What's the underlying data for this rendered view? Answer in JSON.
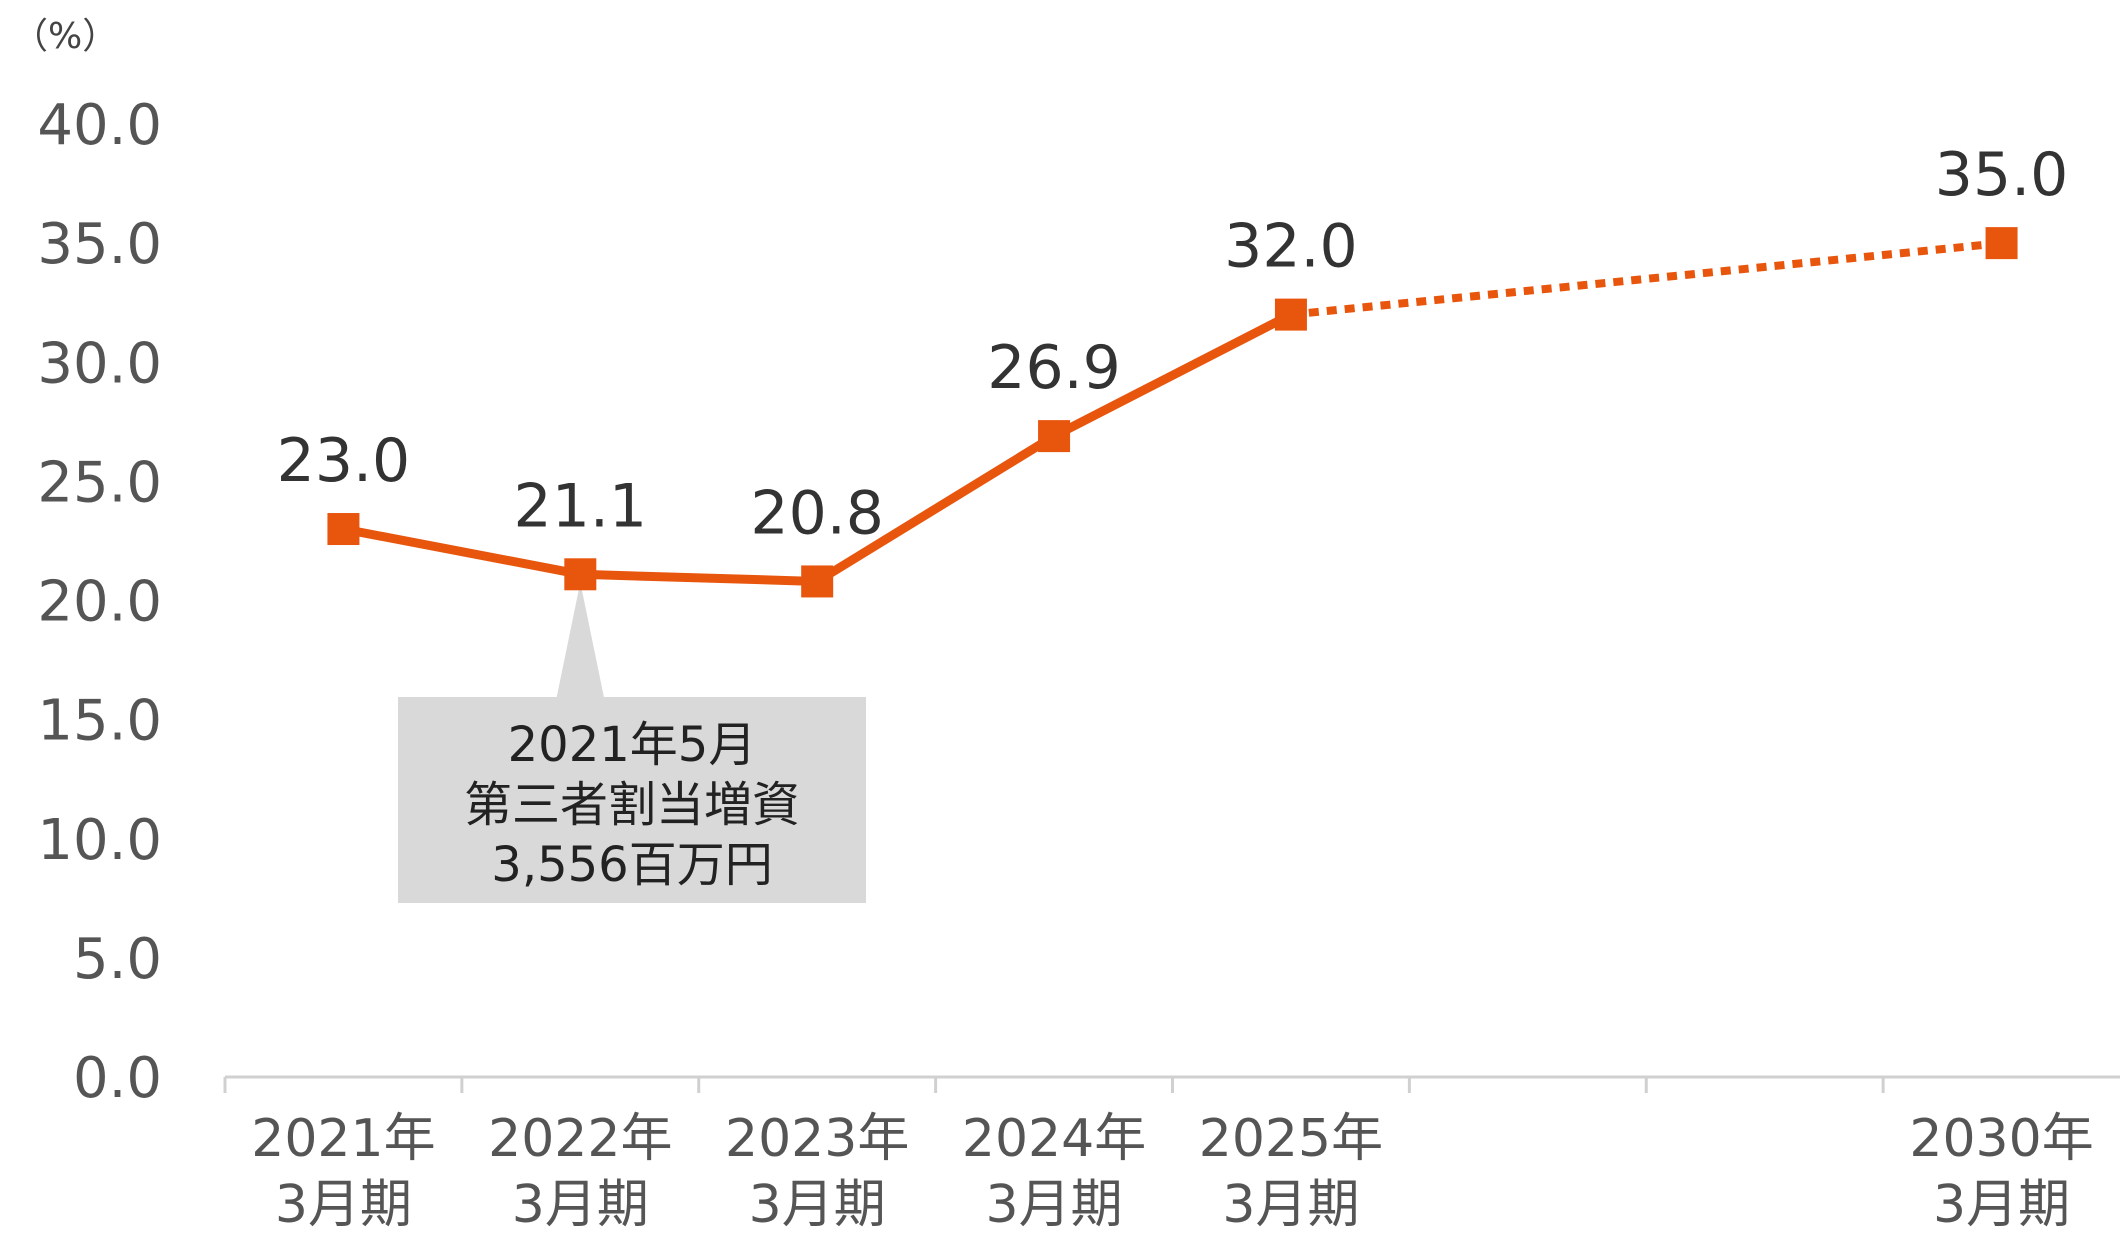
{
  "chart_data": {
    "type": "line",
    "unit_label": "（%）",
    "categories": [
      [
        "2021年",
        "3月期"
      ],
      [
        "2022年",
        "3月期"
      ],
      [
        "2023年",
        "3月期"
      ],
      [
        "2024年",
        "3月期"
      ],
      [
        "2025年",
        "3月期"
      ],
      [
        "",
        ""
      ],
      [
        "",
        ""
      ],
      [
        "2030年",
        "3月期"
      ]
    ],
    "series": [
      {
        "values": [
          23.0,
          21.1,
          20.8,
          26.9,
          32.0,
          null,
          null,
          35.0
        ],
        "data_labels": [
          "23.0",
          "21.1",
          "20.8",
          "26.9",
          "32.0",
          "",
          "",
          "35.0"
        ],
        "color": "#E8560E",
        "projection_from_index": 4
      }
    ],
    "ylim": [
      0,
      40
    ],
    "yticks": [
      "0.0",
      "5.0",
      "10.0",
      "15.0",
      "20.0",
      "25.0",
      "30.0",
      "35.0",
      "40.0"
    ],
    "grid": false,
    "legend": "none",
    "annotation": {
      "category_index": 1,
      "lines": [
        "2021年5月",
        "第三者割当増資",
        "3,556百万円"
      ],
      "background": "#D9D9D9"
    }
  }
}
